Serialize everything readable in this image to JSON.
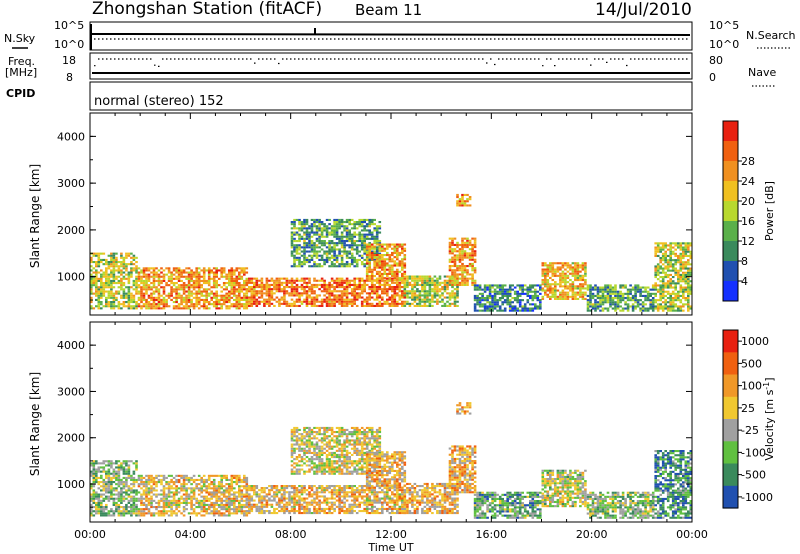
{
  "header": {
    "station": "Zhongshan Station (fitACF)",
    "beam": "Beam 11",
    "date": "14/Jul/2010"
  },
  "panels": {
    "nsky_label": "N.Sky",
    "nsky_ticks": [
      "10^5",
      "10^0"
    ],
    "nsearch_label": "N.Search",
    "nsearch_ticks": [
      "10^5",
      "10^0"
    ],
    "freq_label_1": "Freq.",
    "freq_label_2": "[MHz]",
    "freq_ticks": [
      "18",
      "8"
    ],
    "nave_label": "Nave",
    "nave_ticks": [
      "80",
      "0"
    ],
    "cpid_label": "CPID",
    "cpid_text": "normal (stereo) 152"
  },
  "chart_data": [
    {
      "type": "heatmap",
      "name": "power",
      "xlabel": "Time UT",
      "ylabel": "Slant Range [km]",
      "xlim": [
        0,
        24
      ],
      "ylim": [
        180,
        4500
      ],
      "yticks": [
        "1000",
        "2000",
        "3000",
        "4000"
      ],
      "xticks": [
        "00:00",
        "04:00",
        "08:00",
        "12:00",
        "16:00",
        "20:00",
        "00:00"
      ],
      "colorbar": {
        "label": "Power [dB]",
        "ticks": [
          "4",
          "8",
          "12",
          "16",
          "20",
          "24",
          "28"
        ],
        "colors": [
          "#1430ff",
          "#2050b0",
          "#3a8a5c",
          "#5ab04a",
          "#b8d82e",
          "#f0c020",
          "#f09020",
          "#f06010",
          "#e82010"
        ]
      },
      "regions": [
        {
          "t0": 0.0,
          "t1": 1.9,
          "r0": 300,
          "r1": 1500,
          "level": 0.5
        },
        {
          "t0": 1.9,
          "t1": 6.2,
          "r0": 300,
          "r1": 1200,
          "level": 0.7
        },
        {
          "t0": 6.2,
          "t1": 12.5,
          "r0": 350,
          "r1": 950,
          "level": 0.78
        },
        {
          "t0": 12.5,
          "t1": 14.6,
          "r0": 350,
          "r1": 1000,
          "level": 0.5
        },
        {
          "t0": 14.3,
          "t1": 15.3,
          "r0": 800,
          "r1": 1800,
          "level": 0.7
        },
        {
          "t0": 15.3,
          "t1": 18.0,
          "r0": 250,
          "r1": 800,
          "level": 0.25
        },
        {
          "t0": 18.0,
          "t1": 19.8,
          "r0": 500,
          "r1": 1300,
          "level": 0.65
        },
        {
          "t0": 19.8,
          "t1": 22.5,
          "r0": 250,
          "r1": 800,
          "level": 0.35
        },
        {
          "t0": 22.5,
          "t1": 24.0,
          "r0": 250,
          "r1": 1700,
          "level": 0.5
        },
        {
          "t0": 8.0,
          "t1": 11.5,
          "r0": 1200,
          "r1": 2200,
          "level": 0.35
        },
        {
          "t0": 11.0,
          "t1": 12.5,
          "r0": 900,
          "r1": 1700,
          "level": 0.7
        },
        {
          "t0": 14.6,
          "t1": 15.1,
          "r0": 2500,
          "r1": 2750,
          "level": 0.7
        }
      ]
    },
    {
      "type": "heatmap",
      "name": "velocity",
      "xlabel": "Time UT",
      "ylabel": "Slant Range [km]",
      "xlim": [
        0,
        24
      ],
      "ylim": [
        180,
        4500
      ],
      "yticks": [
        "1000",
        "2000",
        "3000",
        "4000"
      ],
      "xticks": [
        "00:00",
        "04:00",
        "08:00",
        "12:00",
        "16:00",
        "20:00",
        "00:00"
      ],
      "colorbar": {
        "label": "Velocity [m s",
        "label_sup": "-1",
        "label_end": "]",
        "ticks": [
          "1000",
          "500",
          "100",
          "25",
          "-25",
          "-100",
          "-500",
          "-1000"
        ],
        "colors": [
          "#2050b0",
          "#3a8a5c",
          "#60c040",
          "#a0a0a0",
          "#f0c830",
          "#f09828",
          "#f06010",
          "#e82010"
        ]
      },
      "regions": [
        {
          "t0": 0.0,
          "t1": 1.9,
          "r0": 300,
          "r1": 1500,
          "level": 0.35
        },
        {
          "t0": 1.9,
          "t1": 6.2,
          "r0": 300,
          "r1": 1200,
          "level": 0.55
        },
        {
          "t0": 6.2,
          "t1": 12.5,
          "r0": 350,
          "r1": 950,
          "level": 0.58
        },
        {
          "t0": 12.5,
          "t1": 14.6,
          "r0": 350,
          "r1": 1000,
          "level": 0.6
        },
        {
          "t0": 14.3,
          "t1": 15.3,
          "r0": 800,
          "r1": 1800,
          "level": 0.6
        },
        {
          "t0": 15.3,
          "t1": 18.0,
          "r0": 250,
          "r1": 800,
          "level": 0.3
        },
        {
          "t0": 18.0,
          "t1": 19.8,
          "r0": 500,
          "r1": 1300,
          "level": 0.45
        },
        {
          "t0": 19.8,
          "t1": 22.5,
          "r0": 250,
          "r1": 800,
          "level": 0.35
        },
        {
          "t0": 22.5,
          "t1": 24.0,
          "r0": 250,
          "r1": 1700,
          "level": 0.2
        },
        {
          "t0": 8.0,
          "t1": 11.5,
          "r0": 1200,
          "r1": 2200,
          "level": 0.5
        },
        {
          "t0": 11.0,
          "t1": 12.5,
          "r0": 900,
          "r1": 1700,
          "level": 0.6
        },
        {
          "t0": 14.6,
          "t1": 15.1,
          "r0": 2500,
          "r1": 2750,
          "level": 0.6
        }
      ]
    }
  ]
}
